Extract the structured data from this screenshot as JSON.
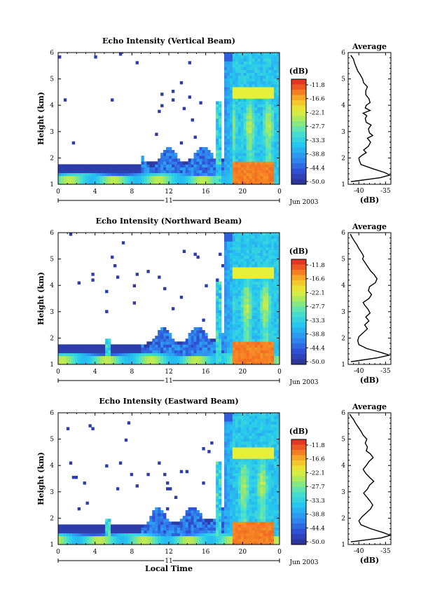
{
  "chart_data": [
    {
      "type": "heatmap",
      "title": "Echo Intensity (Vertical Beam)",
      "xlabel": "",
      "ylabel": "Height (km)",
      "x_ticks": [
        "0",
        "4",
        "8",
        "12",
        "16",
        "20",
        "0"
      ],
      "y_ticks": [
        "1",
        "2",
        "3",
        "4",
        "5",
        "6"
      ],
      "xlim": [
        0,
        24
      ],
      "ylim": [
        1,
        6
      ],
      "day_label": "11",
      "date_label": "Jun 2003",
      "colorbar": {
        "label": "(dB)",
        "ticks": [
          "-11.8",
          "-16.6",
          "-22.1",
          "-27.7",
          "-33.3",
          "-38.8",
          "-44.4",
          "-50.0"
        ]
      },
      "profile": {
        "title": "Average",
        "xlabel": "(dB)",
        "x_ticks": [
          "-40",
          "-35"
        ],
        "xlim": [
          -42,
          -34
        ],
        "y_ticks": [
          "1",
          "2",
          "3",
          "4",
          "5",
          "6"
        ],
        "ylim": [
          1,
          6
        ],
        "x": [
          -41.5,
          -36,
          -34.2,
          -35.2,
          -37.5,
          -39.6,
          -39.9,
          -40,
          -39.4,
          -38.6,
          -39.1,
          -38.2,
          -37.8,
          -38.4,
          -37.4,
          -38.0,
          -38.2,
          -37.7,
          -38.6,
          -38.8,
          -38.5,
          -39.2,
          -37.9,
          -38.8,
          -38.6,
          -37.9,
          -38.1,
          -38.7,
          -38.7,
          -38.4,
          -39.1,
          -39.3,
          -39.7,
          -40.2,
          -40.5,
          -40.8,
          -41.0,
          -41.5
        ],
        "y": [
          1.1,
          1.25,
          1.35,
          1.45,
          1.6,
          1.75,
          1.9,
          2.0,
          2.1,
          2.2,
          2.3,
          2.45,
          2.6,
          2.75,
          2.85,
          2.95,
          3.1,
          3.25,
          3.35,
          3.5,
          3.6,
          3.7,
          3.8,
          3.9,
          4.0,
          4.1,
          4.25,
          4.4,
          4.55,
          4.7,
          4.85,
          5.0,
          5.15,
          5.3,
          5.45,
          5.6,
          5.75,
          5.9
        ]
      }
    },
    {
      "type": "heatmap",
      "title": "Echo Intensity (Northward Beam)",
      "xlabel": "",
      "ylabel": "Height (km)",
      "x_ticks": [
        "0",
        "4",
        "8",
        "12",
        "16",
        "20",
        "0"
      ],
      "y_ticks": [
        "1",
        "2",
        "3",
        "4",
        "5",
        "6"
      ],
      "xlim": [
        0,
        24
      ],
      "ylim": [
        1,
        6
      ],
      "day_label": "11",
      "date_label": "Jun 2003",
      "colorbar": {
        "label": "(dB)",
        "ticks": [
          "-11.8",
          "-16.6",
          "-22.1",
          "-27.7",
          "-33.3",
          "-38.8",
          "-44.4",
          "-50.0"
        ]
      },
      "profile": {
        "title": "Average",
        "xlabel": "(dB)",
        "x_ticks": [
          "-40",
          "-35"
        ],
        "xlim": [
          -42,
          -34
        ],
        "y_ticks": [
          "1",
          "2",
          "3",
          "4",
          "5",
          "6"
        ],
        "ylim": [
          1,
          6
        ],
        "x": [
          -41.5,
          -36.5,
          -34.3,
          -35.8,
          -38.5,
          -40.0,
          -40.2,
          -40.0,
          -39.2,
          -38.4,
          -38.9,
          -38.1,
          -38.7,
          -37.9,
          -38.3,
          -38.9,
          -39.2,
          -38.1,
          -37.6,
          -38.2,
          -38.0,
          -36.9,
          -36.6,
          -37.1,
          -37.8,
          -38.3,
          -38.8,
          -39.3,
          -39.1,
          -39.5,
          -40.0,
          -40.4,
          -40.9,
          -41.2,
          -41.6
        ],
        "y": [
          1.1,
          1.25,
          1.35,
          1.45,
          1.6,
          1.75,
          1.9,
          2.05,
          2.2,
          2.35,
          2.5,
          2.65,
          2.8,
          2.95,
          3.1,
          3.25,
          3.35,
          3.5,
          3.65,
          3.8,
          3.95,
          4.1,
          4.25,
          4.4,
          4.55,
          4.7,
          4.85,
          5.0,
          5.1,
          5.25,
          5.4,
          5.55,
          5.7,
          5.8,
          5.95
        ]
      }
    },
    {
      "type": "heatmap",
      "title": "Echo Intensity (Eastward Beam)",
      "xlabel": "Local Time",
      "ylabel": "Height (km)",
      "x_ticks": [
        "0",
        "4",
        "8",
        "12",
        "16",
        "20",
        "0"
      ],
      "y_ticks": [
        "1",
        "2",
        "3",
        "4",
        "5",
        "6"
      ],
      "xlim": [
        0,
        24
      ],
      "ylim": [
        1,
        6
      ],
      "day_label": "11",
      "date_label": "Jun 2003",
      "colorbar": {
        "label": "(dB)",
        "ticks": [
          "-11.8",
          "-16.6",
          "-22.1",
          "-27.7",
          "-33.3",
          "-38.8",
          "-44.4",
          "-50.0"
        ]
      },
      "profile": {
        "title": "Average",
        "xlabel": "(dB)",
        "x_ticks": [
          "-40",
          "-35"
        ],
        "xlim": [
          -42,
          -34
        ],
        "y_ticks": [
          "1",
          "2",
          "3",
          "4",
          "5",
          "6"
        ],
        "ylim": [
          1,
          6
        ],
        "x": [
          -41.5,
          -35.8,
          -34.1,
          -35.4,
          -37.8,
          -39.6,
          -40.0,
          -39.4,
          -38.6,
          -37.8,
          -37.4,
          -37.9,
          -38.5,
          -39.1,
          -38.4,
          -38.0,
          -37.2,
          -38.0,
          -38.7,
          -39.2,
          -38.6,
          -38.1,
          -37.3,
          -37.9,
          -38.6,
          -38.4,
          -38.8,
          -38.5,
          -39.2,
          -39.6,
          -40.1,
          -40.6,
          -41.0,
          -41.4,
          -41.7
        ],
        "y": [
          1.1,
          1.25,
          1.35,
          1.45,
          1.6,
          1.75,
          1.9,
          2.05,
          2.2,
          2.35,
          2.5,
          2.65,
          2.8,
          2.95,
          3.1,
          3.25,
          3.4,
          3.55,
          3.7,
          3.85,
          4.0,
          4.15,
          4.3,
          4.45,
          4.55,
          4.7,
          4.85,
          5.0,
          5.15,
          5.3,
          5.45,
          5.6,
          5.75,
          5.85,
          5.95
        ]
      }
    }
  ]
}
